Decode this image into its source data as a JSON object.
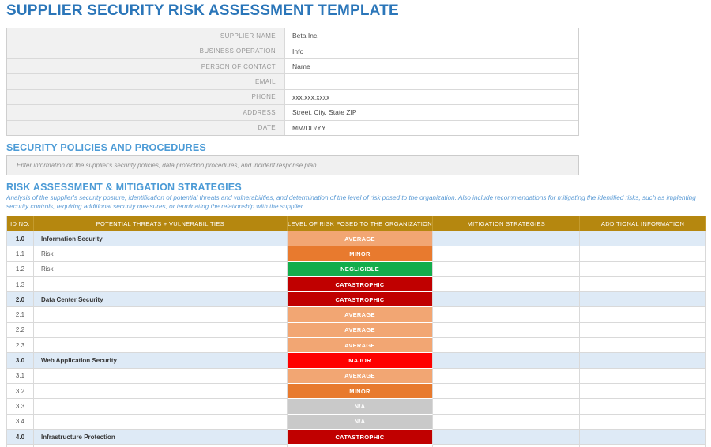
{
  "page": {
    "title": "SUPPLIER SECURITY RISK ASSESSMENT TEMPLATE"
  },
  "supplier_form": {
    "fields": [
      {
        "label": "SUPPLIER NAME",
        "value": "Beta Inc."
      },
      {
        "label": "BUSINESS OPERATION",
        "value": "Info"
      },
      {
        "label": "PERSON OF CONTACT",
        "value": "Name"
      },
      {
        "label": "EMAIL",
        "value": ""
      },
      {
        "label": "PHONE",
        "value": "xxx.xxx.xxxx"
      },
      {
        "label": "ADDRESS",
        "value": "Street, City, State ZIP"
      },
      {
        "label": "DATE",
        "value": "MM/DD/YY"
      }
    ]
  },
  "policies_section": {
    "heading": "SECURITY POLICIES AND PROCEDURES",
    "note": "Enter information on the supplier's security policies, data protection procedures, and incident response plan."
  },
  "risk_section": {
    "heading": "RISK ASSESSMENT & MITIGATION STRATEGIES",
    "description": "Analysis of the supplier's security posture, identification of potential threats and vulnerabilities, and determination of the level of risk posed to the organization. Also include recommendations for mitigating the identified risks, such as implenting security controls, requiring additional security measures, or terminating the relationship with the supplier.",
    "table": {
      "columns": [
        "ID No.",
        "POTENTIAL THREATS + VULNERABILITIES",
        "LEVEL OF RISK POSED TO THE ORGANIZATION",
        "MITIGATION STRATEGIES",
        "ADDITIONAL INFORMATION"
      ],
      "rows": [
        {
          "id": "1.0",
          "threat": "Information Security",
          "risk": "AVERAGE",
          "mitigation": "",
          "additional": "",
          "group": true
        },
        {
          "id": "1.1",
          "threat": "Risk",
          "risk": "MINOR",
          "mitigation": "",
          "additional": "",
          "group": false
        },
        {
          "id": "1.2",
          "threat": "Risk",
          "risk": "NEGLIGIBLE",
          "mitigation": "",
          "additional": "",
          "group": false
        },
        {
          "id": "1.3",
          "threat": "",
          "risk": "CATASTROPHIC",
          "mitigation": "",
          "additional": "",
          "group": false
        },
        {
          "id": "2.0",
          "threat": "Data Center Security",
          "risk": "CATASTROPHIC",
          "mitigation": "",
          "additional": "",
          "group": true
        },
        {
          "id": "2.1",
          "threat": "",
          "risk": "AVERAGE",
          "mitigation": "",
          "additional": "",
          "group": false
        },
        {
          "id": "2.2",
          "threat": "",
          "risk": "AVERAGE",
          "mitigation": "",
          "additional": "",
          "group": false
        },
        {
          "id": "2.3",
          "threat": "",
          "risk": "AVERAGE",
          "mitigation": "",
          "additional": "",
          "group": false
        },
        {
          "id": "3.0",
          "threat": "Web Application Security",
          "risk": "MAJOR",
          "mitigation": "",
          "additional": "",
          "group": true
        },
        {
          "id": "3.1",
          "threat": "",
          "risk": "AVERAGE",
          "mitigation": "",
          "additional": "",
          "group": false
        },
        {
          "id": "3.2",
          "threat": "",
          "risk": "MINOR",
          "mitigation": "",
          "additional": "",
          "group": false
        },
        {
          "id": "3.3",
          "threat": "",
          "risk": "N/A",
          "mitigation": "",
          "additional": "",
          "group": false
        },
        {
          "id": "3.4",
          "threat": "",
          "risk": "N/A",
          "mitigation": "",
          "additional": "",
          "group": false
        },
        {
          "id": "4.0",
          "threat": "Infrastructure Protection",
          "risk": "CATASTROPHIC",
          "mitigation": "",
          "additional": "",
          "group": true
        },
        {
          "id": "",
          "threat": "",
          "risk": "",
          "mitigation": "",
          "additional": "",
          "group": false
        }
      ]
    }
  },
  "colors": {
    "title_blue": "#2B76B9",
    "section_heading_blue": "#4C9BD6",
    "description_blue": "#5B9BD5",
    "table_header_gold": "#B5870F",
    "group_row_blue": "#DEEAF6",
    "risk_levels": {
      "AVERAGE": "#F2A673",
      "MINOR": "#E87A2E",
      "NEGLIGIBLE": "#13AD4C",
      "MAJOR": "#FE0000",
      "CATASTROPHIC": "#C00000",
      "N/A": "#C9C9C9"
    }
  }
}
